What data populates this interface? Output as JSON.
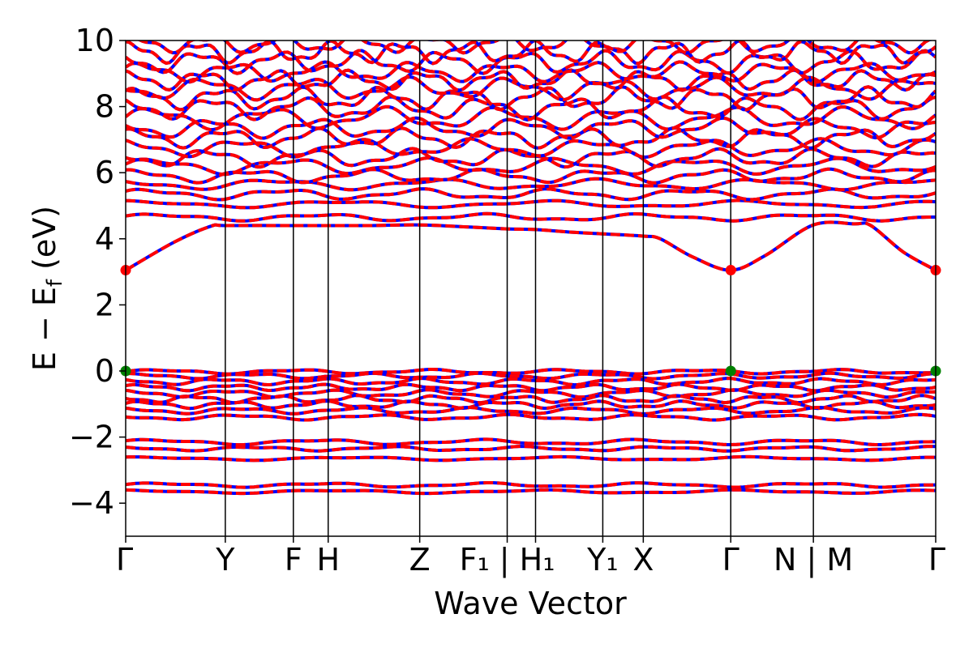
{
  "chart_data": {
    "type": "line",
    "title": "",
    "xlabel": "Wave Vector",
    "ylabel": "E − E_f (eV)",
    "ylabel_parts": {
      "main": "E − E",
      "sub": "f",
      "unit": " (eV)"
    },
    "ylim": [
      -5,
      10
    ],
    "yticks": [
      {
        "value": 10,
        "label": "10"
      },
      {
        "value": 8,
        "label": "8"
      },
      {
        "value": 6,
        "label": "6"
      },
      {
        "value": 4,
        "label": "4"
      },
      {
        "value": 2,
        "label": "2"
      },
      {
        "value": 0,
        "label": "0"
      },
      {
        "value": -2,
        "label": "−2"
      },
      {
        "value": -4,
        "label": "−4"
      }
    ],
    "xlim": [
      0,
      1
    ],
    "kpoints": [
      {
        "pos": 0.0,
        "label": "Γ"
      },
      {
        "pos": 0.123,
        "label": "Y"
      },
      {
        "pos": 0.207,
        "label": "F"
      },
      {
        "pos": 0.25,
        "label": "H"
      },
      {
        "pos": 0.363,
        "label": "Z"
      },
      {
        "pos": 0.471,
        "label": "F₁ | H₁"
      },
      {
        "pos": 0.506,
        "label": ""
      },
      {
        "pos": 0.589,
        "label": "Y₁"
      },
      {
        "pos": 0.639,
        "label": "X"
      },
      {
        "pos": 0.747,
        "label": "Γ"
      },
      {
        "pos": 0.849,
        "label": "N | M"
      },
      {
        "pos": 1.0,
        "label": "Γ"
      }
    ],
    "series_colors": {
      "band": "#ff0000",
      "overlay": "#0000ff"
    },
    "highlight_points": [
      {
        "x": 0.0,
        "y": 3.05,
        "color": "#ff0000"
      },
      {
        "x": 0.747,
        "y": 3.05,
        "color": "#ff0000"
      },
      {
        "x": 1.0,
        "y": 3.05,
        "color": "#ff0000"
      },
      {
        "x": 0.0,
        "y": 0.0,
        "color": "#008000"
      },
      {
        "x": 0.747,
        "y": 0.0,
        "color": "#008000"
      },
      {
        "x": 1.0,
        "y": 0.0,
        "color": "#008000"
      }
    ],
    "conduction_band_min": [
      [
        0.0,
        3.05
      ],
      [
        0.06,
        3.9
      ],
      [
        0.105,
        4.38
      ],
      [
        0.123,
        4.4
      ],
      [
        0.207,
        4.4
      ],
      [
        0.25,
        4.4
      ],
      [
        0.3,
        4.4
      ],
      [
        0.363,
        4.42
      ],
      [
        0.42,
        4.36
      ],
      [
        0.471,
        4.3
      ],
      [
        0.506,
        4.28
      ],
      [
        0.55,
        4.2
      ],
      [
        0.589,
        4.15
      ],
      [
        0.639,
        4.08
      ],
      [
        0.66,
        4.0
      ],
      [
        0.7,
        3.45
      ],
      [
        0.747,
        3.05
      ],
      [
        0.79,
        3.5
      ],
      [
        0.849,
        4.42
      ],
      [
        0.9,
        4.45
      ],
      [
        0.92,
        4.4
      ],
      [
        0.96,
        3.6
      ],
      [
        1.0,
        3.05
      ]
    ],
    "bands": [
      {
        "base": 4.65,
        "amp": 0.08,
        "freq": 5,
        "phase": 0.3
      },
      {
        "base": 5.05,
        "amp": 0.08,
        "freq": 4,
        "phase": 1.2
      },
      {
        "base": 5.35,
        "amp": 0.12,
        "freq": 6,
        "phase": 0.5
      },
      {
        "base": 5.65,
        "amp": 0.12,
        "freq": 5,
        "phase": 2.1
      },
      {
        "base": 5.9,
        "amp": 0.15,
        "freq": 7,
        "phase": 1.0
      },
      {
        "base": 6.2,
        "amp": 0.18,
        "freq": 6,
        "phase": 0.2
      },
      {
        "base": 6.45,
        "amp": 0.2,
        "freq": 8,
        "phase": 2.7
      },
      {
        "base": 6.75,
        "amp": 0.2,
        "freq": 7,
        "phase": 1.6
      },
      {
        "base": 7.05,
        "amp": 0.22,
        "freq": 9,
        "phase": 0.9
      },
      {
        "base": 7.35,
        "amp": 0.22,
        "freq": 8,
        "phase": 2.4
      },
      {
        "base": 7.65,
        "amp": 0.25,
        "freq": 7,
        "phase": 0.1
      },
      {
        "base": 7.95,
        "amp": 0.25,
        "freq": 9,
        "phase": 1.8
      },
      {
        "base": 8.25,
        "amp": 0.25,
        "freq": 10,
        "phase": 0.6
      },
      {
        "base": 8.55,
        "amp": 0.25,
        "freq": 8,
        "phase": 2.9
      },
      {
        "base": 8.8,
        "amp": 0.22,
        "freq": 11,
        "phase": 1.3
      },
      {
        "base": 9.05,
        "amp": 0.22,
        "freq": 9,
        "phase": 0.4
      },
      {
        "base": 9.35,
        "amp": 0.25,
        "freq": 10,
        "phase": 2.2
      },
      {
        "base": 9.65,
        "amp": 0.25,
        "freq": 12,
        "phase": 1.1
      },
      {
        "base": 9.9,
        "amp": 0.2,
        "freq": 11,
        "phase": 0.8
      },
      {
        "base": -0.02,
        "amp": 0.05,
        "freq": 6,
        "phase": 0.0
      },
      {
        "base": -0.15,
        "amp": 0.06,
        "freq": 7,
        "phase": 1.0
      },
      {
        "base": -0.32,
        "amp": 0.07,
        "freq": 8,
        "phase": 2.0
      },
      {
        "base": -0.5,
        "amp": 0.07,
        "freq": 9,
        "phase": 0.5
      },
      {
        "base": -0.68,
        "amp": 0.08,
        "freq": 8,
        "phase": 1.5
      },
      {
        "base": -0.85,
        "amp": 0.08,
        "freq": 10,
        "phase": 2.5
      },
      {
        "base": -1.02,
        "amp": 0.08,
        "freq": 9,
        "phase": 0.3
      },
      {
        "base": -1.2,
        "amp": 0.07,
        "freq": 7,
        "phase": 1.7
      },
      {
        "base": -1.4,
        "amp": 0.06,
        "freq": 6,
        "phase": 2.6
      },
      {
        "base": -2.15,
        "amp": 0.06,
        "freq": 5,
        "phase": 0.4
      },
      {
        "base": -2.35,
        "amp": 0.05,
        "freq": 6,
        "phase": 1.9
      },
      {
        "base": -2.65,
        "amp": 0.04,
        "freq": 4,
        "phase": 0.9
      },
      {
        "base": -3.45,
        "amp": 0.05,
        "freq": 5,
        "phase": 0.2
      },
      {
        "base": -3.65,
        "amp": 0.04,
        "freq": 4,
        "phase": 1.4
      }
    ]
  }
}
